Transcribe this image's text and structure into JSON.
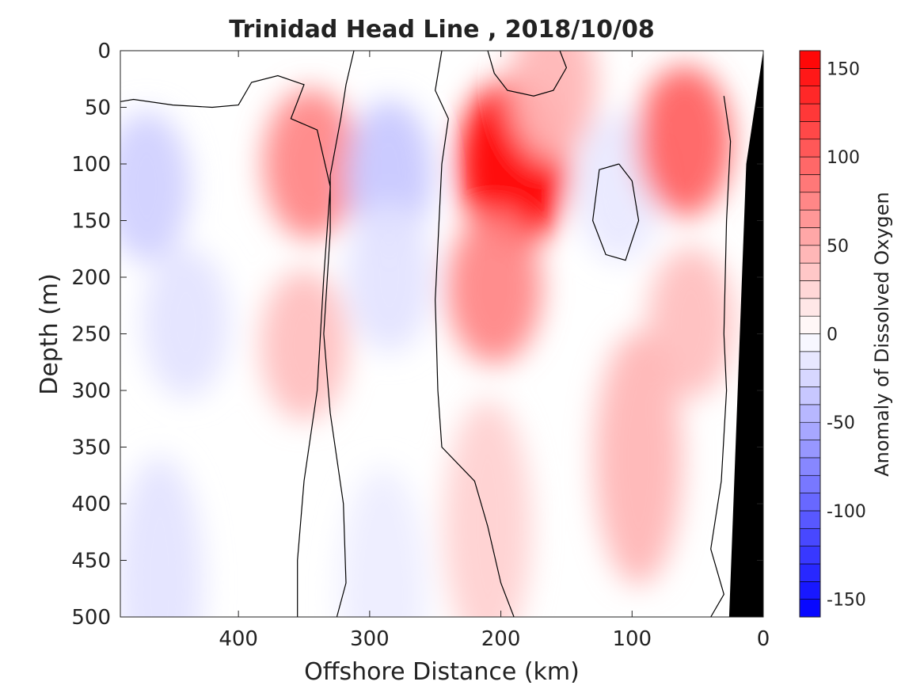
{
  "chart_data": {
    "type": "heatmap",
    "title": "Trinidad Head Line , 2018/10/08",
    "xlabel": "Offshore Distance (km)",
    "ylabel": "Depth (m)",
    "xlim": [
      490,
      0
    ],
    "ylim": [
      0,
      500
    ],
    "x_reversed": true,
    "y_reversed": true,
    "x_ticks": [
      400,
      300,
      200,
      100,
      0
    ],
    "x_tick_labels": [
      "400",
      "300",
      "200",
      "100",
      "0"
    ],
    "y_ticks": [
      0,
      50,
      100,
      150,
      200,
      250,
      300,
      350,
      400,
      450,
      500
    ],
    "y_tick_labels": [
      "0",
      "50",
      "100",
      "150",
      "200",
      "250",
      "300",
      "350",
      "400",
      "450",
      "500"
    ],
    "grid": false,
    "contour_levels": [
      -150,
      150
    ],
    "zero_contour_line_color": "#000000",
    "colorbar": {
      "label": "Anomaly of Dissolved Oxygen",
      "range": [
        -160,
        160
      ],
      "ticks": [
        -150,
        -100,
        -50,
        0,
        50,
        100,
        150
      ],
      "tick_labels": [
        "-150",
        "-100",
        "-50",
        "0",
        "50",
        "100",
        "150"
      ],
      "step": 10,
      "colormap": "blue-white-red",
      "negative_color": "#0000ff",
      "positive_color": "#ff0000",
      "neutral_color": "#ffffff",
      "position": "right"
    },
    "features": [
      {
        "x": 470,
        "depth": 120,
        "value": -25
      },
      {
        "x": 440,
        "depth": 240,
        "value": -15
      },
      {
        "x": 460,
        "depth": 470,
        "value": -15
      },
      {
        "x": 345,
        "depth": 100,
        "value": 65
      },
      {
        "x": 350,
        "depth": 260,
        "value": 35
      },
      {
        "x": 285,
        "depth": 110,
        "value": -30
      },
      {
        "x": 285,
        "depth": 200,
        "value": -15
      },
      {
        "x": 190,
        "depth": 100,
        "value": 160
      },
      {
        "x": 205,
        "depth": 210,
        "value": 65
      },
      {
        "x": 210,
        "depth": 420,
        "value": 25
      },
      {
        "x": 110,
        "depth": 120,
        "value": -12
      },
      {
        "x": 60,
        "depth": 80,
        "value": 85
      },
      {
        "x": 55,
        "depth": 240,
        "value": 35
      },
      {
        "x": 95,
        "depth": 360,
        "value": 40
      },
      {
        "x": 160,
        "depth": 30,
        "value": 40
      },
      {
        "x": 290,
        "depth": 480,
        "value": -10
      }
    ],
    "bathymetry_color": "#000000"
  }
}
